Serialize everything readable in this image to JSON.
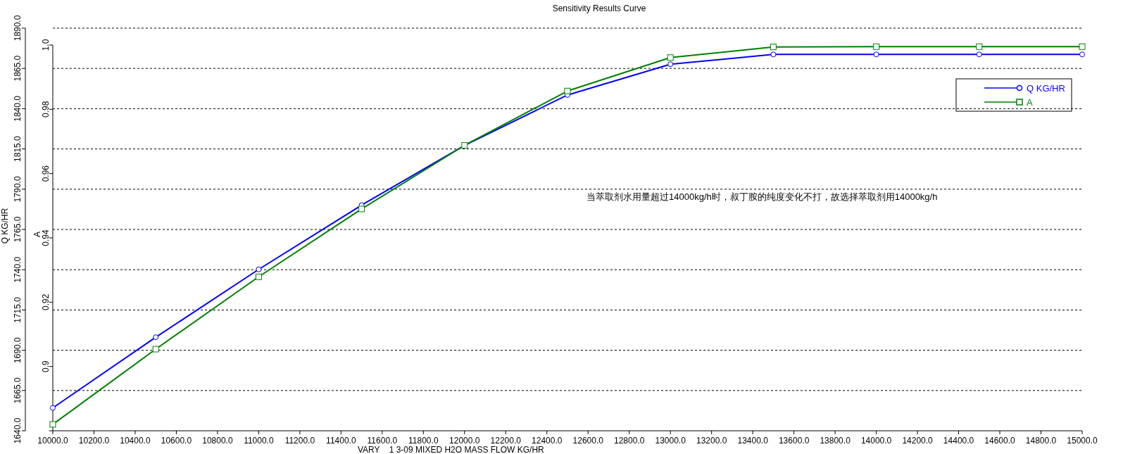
{
  "chart_data": {
    "type": "line",
    "title": "Sensitivity Results Curve",
    "xlabel": "VARY    1 3-09 MIXED H2O MASS FLOW KG/HR",
    "ylabel": "Q KG/HR",
    "y2label": "A",
    "x": [
      10000,
      10500,
      11000,
      11500,
      12000,
      12500,
      13000,
      13500,
      14000,
      14500,
      15000
    ],
    "series": [
      {
        "name": "Q KG/HR",
        "color": "#0000ff",
        "marker": "circle",
        "values": [
          1654.2,
          1698.1,
          1740.2,
          1780.1,
          1817.2,
          1848.5,
          1867.6,
          1873.7,
          1873.7,
          1873.7,
          1873.7
        ]
      },
      {
        "name": "A",
        "color": "#008000",
        "marker": "square",
        "axis": "y2",
        "values": [
          0.882,
          0.9054,
          0.9279,
          0.949,
          0.9688,
          0.9857,
          0.9961,
          0.9994,
          0.9995,
          0.9995,
          0.9995
        ]
      }
    ],
    "xlim": [
      10000,
      15000
    ],
    "xticks": [
      {
        "value": 10000,
        "label": "10000.0"
      },
      {
        "value": 10200,
        "label": "10200.0"
      },
      {
        "value": 10400,
        "label": "10400.0"
      },
      {
        "value": 10600,
        "label": "10600.0"
      },
      {
        "value": 10800,
        "label": "10800.0"
      },
      {
        "value": 11000,
        "label": "11000.0"
      },
      {
        "value": 11200,
        "label": "11200.0"
      },
      {
        "value": 11400,
        "label": "11400.0"
      },
      {
        "value": 11600,
        "label": "11600.0"
      },
      {
        "value": 11800,
        "label": "11800.0"
      },
      {
        "value": 12000,
        "label": "12000.0"
      },
      {
        "value": 12200,
        "label": "12200.0"
      },
      {
        "value": 12400,
        "label": "12400.0"
      },
      {
        "value": 12600,
        "label": "12600.0"
      },
      {
        "value": 12800,
        "label": "12800.0"
      },
      {
        "value": 13000,
        "label": "13000.0"
      },
      {
        "value": 13200,
        "label": "13200.0"
      },
      {
        "value": 13400,
        "label": "13400.0"
      },
      {
        "value": 13600,
        "label": "13600.0"
      },
      {
        "value": 13800,
        "label": "13800.0"
      },
      {
        "value": 14000,
        "label": "14000.0"
      },
      {
        "value": 14200,
        "label": "14200.0"
      },
      {
        "value": 14400,
        "label": "14400.0"
      },
      {
        "value": 14600,
        "label": "14600.0"
      },
      {
        "value": 14800,
        "label": "14800.0"
      },
      {
        "value": 15000,
        "label": "15000.0"
      }
    ],
    "ylim": [
      1640,
      1890
    ],
    "yticks": [
      {
        "value": 1640,
        "label": "1640.0"
      },
      {
        "value": 1665,
        "label": "1665.0"
      },
      {
        "value": 1690,
        "label": "1690.0"
      },
      {
        "value": 1715,
        "label": "1715.0"
      },
      {
        "value": 1740,
        "label": "1740.0"
      },
      {
        "value": 1765,
        "label": "1765.0"
      },
      {
        "value": 1790,
        "label": "1790.0"
      },
      {
        "value": 1815,
        "label": "1815.0"
      },
      {
        "value": 1840,
        "label": "1840.0"
      },
      {
        "value": 1865,
        "label": "1865.0"
      },
      {
        "value": 1890,
        "label": "1890.0"
      }
    ],
    "y2lim": [
      0.88,
      1.0
    ],
    "y2ticks": [
      {
        "value": 0.88,
        "label": null
      },
      {
        "value": 0.9,
        "label": "0.9"
      },
      0.92,
      0.94,
      0.96,
      0.98,
      {
        "value": 1.0,
        "label": "1.0"
      }
    ],
    "grid": "y",
    "line_style": "solid",
    "legend": "top right",
    "annotations": [
      "当萃取剂水用量超过14000kg/h时，叔丁胺的纯度变化不打，故选择萃取剂用14000kg/h"
    ]
  }
}
